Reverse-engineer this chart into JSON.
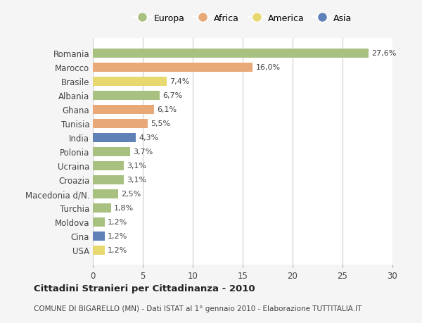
{
  "countries": [
    "Romania",
    "Marocco",
    "Brasile",
    "Albania",
    "Ghana",
    "Tunisia",
    "India",
    "Polonia",
    "Ucraina",
    "Croazia",
    "Macedonia d/N.",
    "Turchia",
    "Moldova",
    "Cina",
    "USA"
  ],
  "values": [
    27.6,
    16.0,
    7.4,
    6.7,
    6.1,
    5.5,
    4.3,
    3.7,
    3.1,
    3.1,
    2.5,
    1.8,
    1.2,
    1.2,
    1.2
  ],
  "labels": [
    "27,6%",
    "16,0%",
    "7,4%",
    "6,7%",
    "6,1%",
    "5,5%",
    "4,3%",
    "3,7%",
    "3,1%",
    "3,1%",
    "2,5%",
    "1,8%",
    "1,2%",
    "1,2%",
    "1,2%"
  ],
  "continents": [
    "Europa",
    "Africa",
    "America",
    "Europa",
    "Africa",
    "Africa",
    "Asia",
    "Europa",
    "Europa",
    "Europa",
    "Europa",
    "Europa",
    "Europa",
    "Asia",
    "America"
  ],
  "colors": {
    "Europa": "#a8c080",
    "Africa": "#e8a878",
    "America": "#e8d870",
    "Asia": "#6080b8"
  },
  "legend_order": [
    "Europa",
    "Africa",
    "America",
    "Asia"
  ],
  "title": "Cittadini Stranieri per Cittadinanza - 2010",
  "subtitle": "COMUNE DI BIGARELLO (MN) - Dati ISTAT al 1° gennaio 2010 - Elaborazione TUTTITALIA.IT",
  "xlim": [
    0,
    30
  ],
  "xticks": [
    0,
    5,
    10,
    15,
    20,
    25,
    30
  ],
  "background_color": "#f5f5f5",
  "plot_background": "#ffffff",
  "grid_color": "#cccccc"
}
